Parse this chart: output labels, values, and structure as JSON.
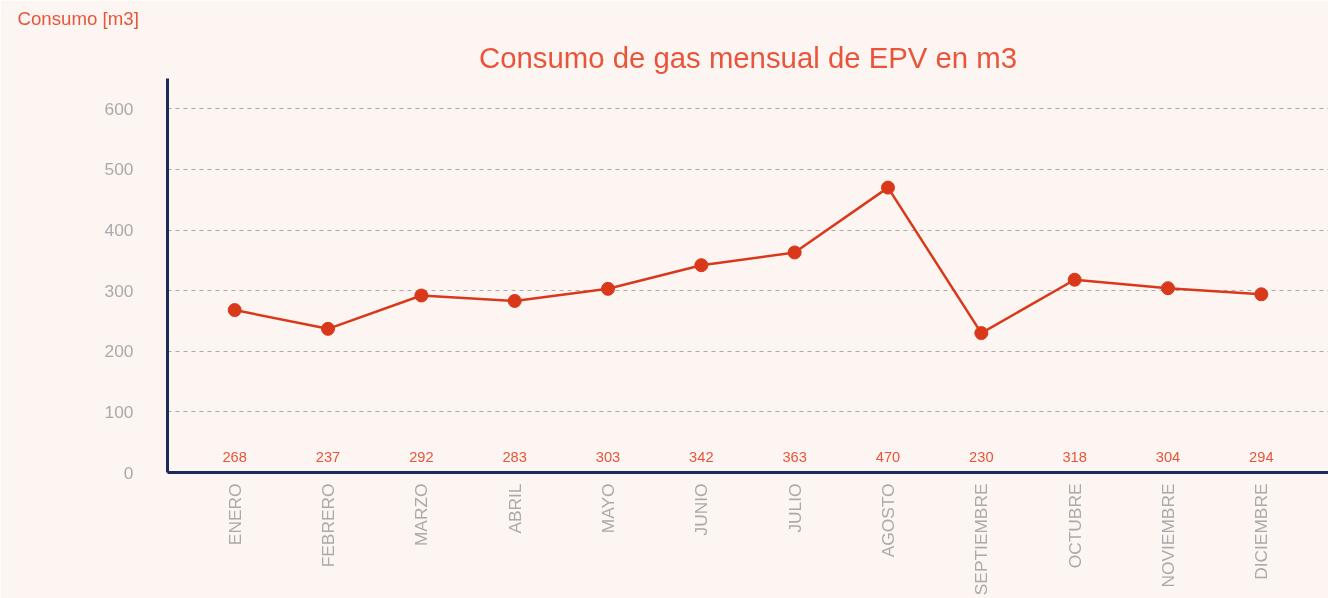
{
  "chart_data": {
    "type": "line",
    "title": "Consumo de gas mensual de EPV en m3",
    "ylabel": "Consumo [m3]",
    "categories": [
      "ENERO",
      "FEBRERO",
      "MARZO",
      "ABRIL",
      "MAYO",
      "JUNIO",
      "JULIO",
      "AGOSTO",
      "SEPTIEMBRE",
      "OCTUBRE",
      "NOVIEMBRE",
      "DICIEMBRE"
    ],
    "series": [
      {
        "color": "#d9391a",
        "values": [
          268,
          237,
          292,
          283,
          303,
          342,
          363,
          470,
          230,
          318,
          304,
          294
        ]
      }
    ],
    "ylim": [
      0,
      650
    ],
    "yticks": [
      0,
      100,
      200,
      300,
      400,
      500,
      600
    ],
    "grid": "y",
    "marker": "circle",
    "line_style": "solid",
    "annotations": [
      "268",
      "237",
      "292",
      "283",
      "303",
      "342",
      "363",
      "470",
      "230",
      "318",
      "304",
      "294"
    ]
  }
}
